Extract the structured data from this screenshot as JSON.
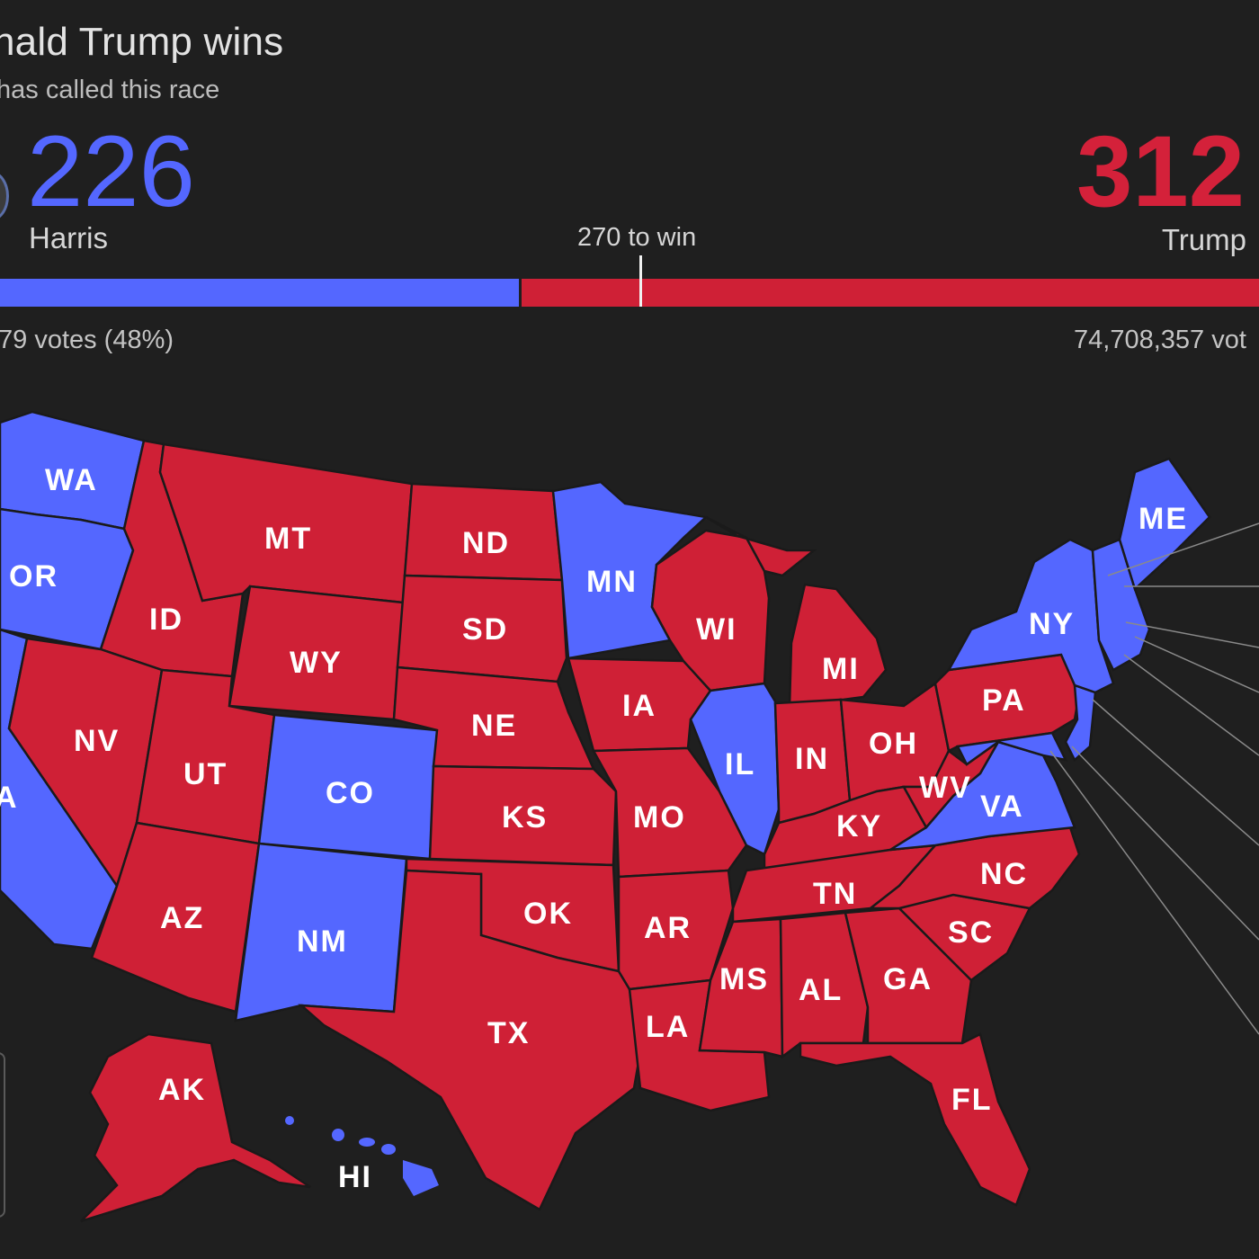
{
  "header": {
    "title": "nald Trump wins",
    "subtitle": "has called this race"
  },
  "harris": {
    "name": "Harris",
    "electoral_votes": "226",
    "popular_votes": "79 votes (48%)",
    "color": "#5467ff"
  },
  "trump": {
    "name": "Trump",
    "electoral_votes": "312",
    "popular_votes": "74,708,357 vot",
    "color": "#cf2036"
  },
  "threshold": {
    "label": "270 to win",
    "value": 270,
    "total": 538
  },
  "map": {
    "states": [
      {
        "code": "WA",
        "winner": "D"
      },
      {
        "code": "OR",
        "winner": "D"
      },
      {
        "code": "A",
        "winner": "D"
      },
      {
        "code": "ID",
        "winner": "R"
      },
      {
        "code": "MT",
        "winner": "R"
      },
      {
        "code": "WY",
        "winner": "R"
      },
      {
        "code": "NV",
        "winner": "R"
      },
      {
        "code": "UT",
        "winner": "R"
      },
      {
        "code": "CO",
        "winner": "D"
      },
      {
        "code": "AZ",
        "winner": "R"
      },
      {
        "code": "NM",
        "winner": "D"
      },
      {
        "code": "ND",
        "winner": "R"
      },
      {
        "code": "SD",
        "winner": "R"
      },
      {
        "code": "NE",
        "winner": "R"
      },
      {
        "code": "KS",
        "winner": "R"
      },
      {
        "code": "OK",
        "winner": "R"
      },
      {
        "code": "TX",
        "winner": "R"
      },
      {
        "code": "MN",
        "winner": "D"
      },
      {
        "code": "IA",
        "winner": "R"
      },
      {
        "code": "MO",
        "winner": "R"
      },
      {
        "code": "AR",
        "winner": "R"
      },
      {
        "code": "LA",
        "winner": "R"
      },
      {
        "code": "WI",
        "winner": "R"
      },
      {
        "code": "IL",
        "winner": "D"
      },
      {
        "code": "MI",
        "winner": "R"
      },
      {
        "code": "IN",
        "winner": "R"
      },
      {
        "code": "OH",
        "winner": "R"
      },
      {
        "code": "KY",
        "winner": "R"
      },
      {
        "code": "TN",
        "winner": "R"
      },
      {
        "code": "MS",
        "winner": "R"
      },
      {
        "code": "AL",
        "winner": "R"
      },
      {
        "code": "GA",
        "winner": "R"
      },
      {
        "code": "FL",
        "winner": "R"
      },
      {
        "code": "SC",
        "winner": "R"
      },
      {
        "code": "NC",
        "winner": "R"
      },
      {
        "code": "VA",
        "winner": "D"
      },
      {
        "code": "WV",
        "winner": "R"
      },
      {
        "code": "PA",
        "winner": "R"
      },
      {
        "code": "NY",
        "winner": "D"
      },
      {
        "code": "ME",
        "winner": "D"
      },
      {
        "code": "AK",
        "winner": "R"
      },
      {
        "code": "HI",
        "winner": "D"
      }
    ]
  }
}
